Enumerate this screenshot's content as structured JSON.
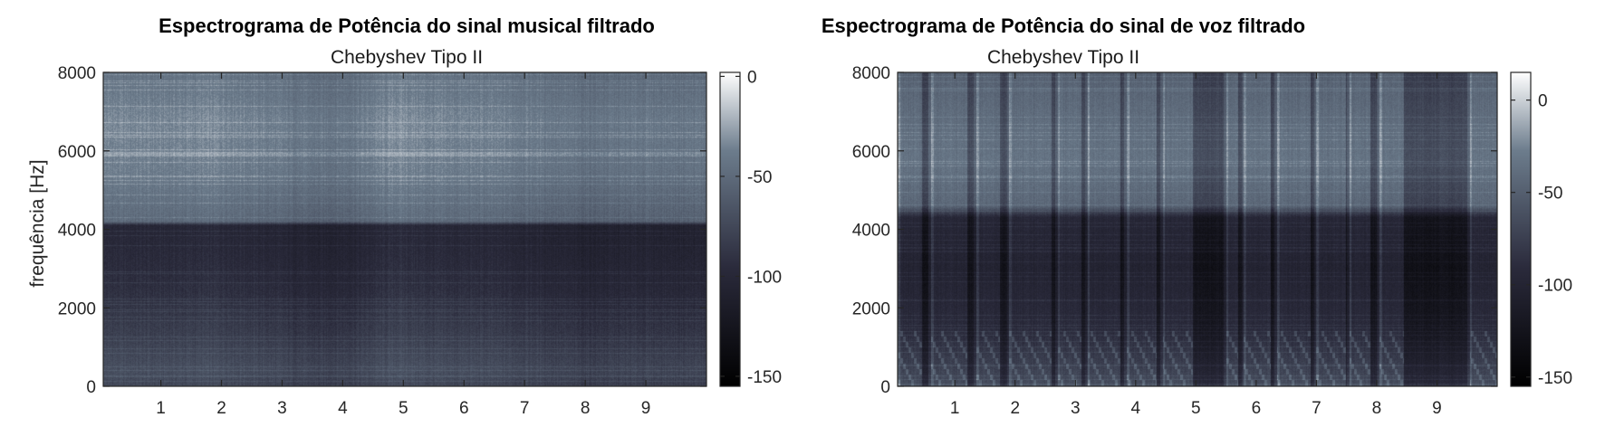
{
  "chart_data": [
    {
      "type": "heatmap",
      "title": "Espectrograma de Potência do sinal musical filtrado",
      "subtitle": "Chebyshev Tipo II",
      "xlabel": "",
      "ylabel": "frequência [Hz]",
      "xlim": [
        0.05,
        10.0
      ],
      "ylim": [
        0,
        8000
      ],
      "xticks": [
        1,
        2,
        3,
        4,
        5,
        6,
        7,
        8,
        9
      ],
      "yticks": [
        0,
        2000,
        4000,
        6000,
        8000
      ],
      "colorbar": {
        "ticks": [
          0,
          -50,
          -100,
          -150
        ],
        "lim": [
          -155,
          2
        ]
      },
      "colormap": "bone",
      "filter_cutoff_hz": 4200,
      "profile": {
        "band_db": [
          {
            "f": 0,
            "db": -78
          },
          {
            "f": 400,
            "db": -72
          },
          {
            "f": 1200,
            "db": -82
          },
          {
            "f": 2500,
            "db": -95
          },
          {
            "f": 4100,
            "db": -103
          },
          {
            "f": 4200,
            "db": -52
          },
          {
            "f": 5500,
            "db": -40
          },
          {
            "f": 6800,
            "db": -36
          },
          {
            "f": 8000,
            "db": -46
          }
        ],
        "time_db": [
          {
            "t": 0.05,
            "db": 3
          },
          {
            "t": 1,
            "db": 2
          },
          {
            "t": 2,
            "db": 4
          },
          {
            "t": 3,
            "db": -2
          },
          {
            "t": 3.6,
            "db": -6
          },
          {
            "t": 4.2,
            "db": -3
          },
          {
            "t": 4.9,
            "db": 6
          },
          {
            "t": 5.5,
            "db": 2
          },
          {
            "t": 6.3,
            "db": 1
          },
          {
            "t": 7.2,
            "db": -2
          },
          {
            "t": 8,
            "db": -7
          },
          {
            "t": 9,
            "db": -4
          },
          {
            "t": 10,
            "db": -5
          }
        ]
      }
    },
    {
      "type": "heatmap",
      "title": "Espectrograma de Potência do sinal de voz filtrado",
      "subtitle": "Chebyshev Tipo II",
      "xlabel": "",
      "ylabel": "",
      "xlim": [
        0.05,
        10.0
      ],
      "ylim": [
        0,
        8000
      ],
      "xticks": [
        1,
        2,
        3,
        4,
        5,
        6,
        7,
        8,
        9
      ],
      "yticks": [
        0,
        2000,
        4000,
        6000,
        8000
      ],
      "colorbar": {
        "ticks": [
          0,
          -50,
          -100,
          -150
        ],
        "lim": [
          -155,
          15
        ]
      },
      "colormap": "bone",
      "filter_cutoff_hz": 4500,
      "profile": {
        "band_db": [
          {
            "f": 0,
            "db": -68
          },
          {
            "f": 600,
            "db": -80
          },
          {
            "f": 1500,
            "db": -95
          },
          {
            "f": 3000,
            "db": -105
          },
          {
            "f": 4300,
            "db": -100
          },
          {
            "f": 4600,
            "db": -48
          },
          {
            "f": 5800,
            "db": -38
          },
          {
            "f": 7000,
            "db": -44
          },
          {
            "f": 8000,
            "db": -52
          }
        ],
        "voiced_segments": [
          [
            0.05,
            0.45
          ],
          [
            0.6,
            1.2
          ],
          [
            1.35,
            1.75
          ],
          [
            1.9,
            2.6
          ],
          [
            2.7,
            3.1
          ],
          [
            3.2,
            3.75
          ],
          [
            3.85,
            4.35
          ],
          [
            4.45,
            4.95
          ],
          [
            5.5,
            5.7
          ],
          [
            5.8,
            6.25
          ],
          [
            6.35,
            6.9
          ],
          [
            7.0,
            7.5
          ],
          [
            7.55,
            7.9
          ],
          [
            8.05,
            8.45
          ],
          [
            9.55,
            10.0
          ]
        ],
        "silence_db_drop": 45
      }
    }
  ]
}
